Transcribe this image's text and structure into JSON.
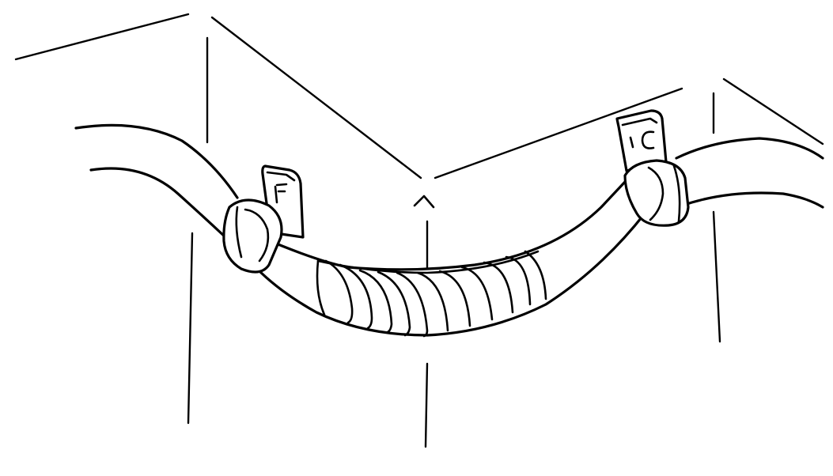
{
  "illustration": {
    "subject": "wire-harness-routed-around-corner",
    "colors": {
      "line": "#000000",
      "background": "#ffffff"
    }
  }
}
